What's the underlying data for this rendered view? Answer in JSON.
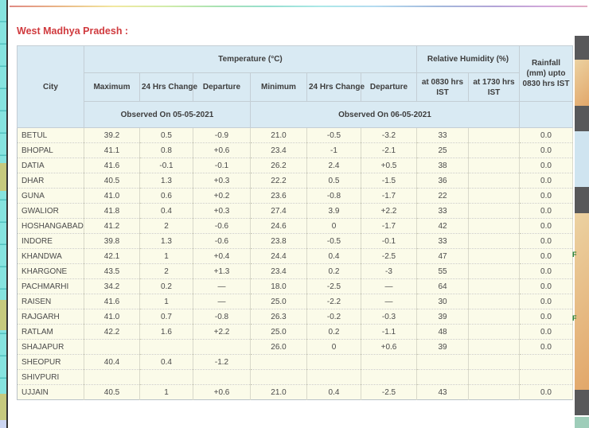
{
  "page": {
    "title": "West Madhya Pradesh :",
    "colors": {
      "title_red": "#d03a3e",
      "observed_red": "#d24a4a",
      "header_bg": "#d9eaf3",
      "row_bg": "#fbfbe9",
      "left_strip_cyan": "#86e3df",
      "left_strip_olive": "#c6c97e",
      "left_strip_lavender": "#ccd6f2",
      "sidebar_gray": "#58585a",
      "sidebar_map_orange": "#e2a76a",
      "sidebar_map_blue": "#cfe4f0",
      "sidebar_link_green": "#1d7d2c"
    }
  },
  "table": {
    "col_city": "City",
    "group_temperature": "Temperature (°C)",
    "group_humidity": "Relative Humidity (%)",
    "col_rainfall": "Rainfall (mm) upto 0830 hrs IST",
    "sub_headers": [
      "Maximum",
      "24 Hrs Change",
      "Departure",
      "Minimum",
      "24 Hrs Change",
      "Departure",
      "at 0830 hrs IST",
      "at 1730 hrs IST"
    ],
    "observed_left": "Observed On 05-05-2021",
    "observed_right": "Observed On 06-05-2021",
    "rows": [
      {
        "city": "BETUL",
        "values": [
          "39.2",
          "0.5",
          "-0.9",
          "21.0",
          "-0.5",
          "-3.2",
          "33",
          "",
          "0.0"
        ]
      },
      {
        "city": "BHOPAL",
        "values": [
          "41.1",
          "0.8",
          "+0.6",
          "23.4",
          "-1",
          "-2.1",
          "25",
          "",
          "0.0"
        ]
      },
      {
        "city": "DATIA",
        "values": [
          "41.6",
          "-0.1",
          "-0.1",
          "26.2",
          "2.4",
          "+0.5",
          "38",
          "",
          "0.0"
        ]
      },
      {
        "city": "DHAR",
        "values": [
          "40.5",
          "1.3",
          "+0.3",
          "22.2",
          "0.5",
          "-1.5",
          "36",
          "",
          "0.0"
        ]
      },
      {
        "city": "GUNA",
        "values": [
          "41.0",
          "0.6",
          "+0.2",
          "23.6",
          "-0.8",
          "-1.7",
          "22",
          "",
          "0.0"
        ]
      },
      {
        "city": "GWALIOR",
        "values": [
          "41.8",
          "0.4",
          "+0.3",
          "27.4",
          "3.9",
          "+2.2",
          "33",
          "",
          "0.0"
        ]
      },
      {
        "city": "HOSHANGABAD",
        "values": [
          "41.2",
          "2",
          "-0.6",
          "24.6",
          "0",
          "-1.7",
          "42",
          "",
          "0.0"
        ]
      },
      {
        "city": "INDORE",
        "values": [
          "39.8",
          "1.3",
          "-0.6",
          "23.8",
          "-0.5",
          "-0.1",
          "33",
          "",
          "0.0"
        ]
      },
      {
        "city": "KHANDWA",
        "values": [
          "42.1",
          "1",
          "+0.4",
          "24.4",
          "0.4",
          "-2.5",
          "47",
          "",
          "0.0"
        ]
      },
      {
        "city": "KHARGONE",
        "values": [
          "43.5",
          "2",
          "+1.3",
          "23.4",
          "0.2",
          "-3",
          "55",
          "",
          "0.0"
        ]
      },
      {
        "city": "PACHMARHI",
        "values": [
          "34.2",
          "0.2",
          "—",
          "18.0",
          "-2.5",
          "—",
          "64",
          "",
          "0.0"
        ]
      },
      {
        "city": "RAISEN",
        "values": [
          "41.6",
          "1",
          "—",
          "25.0",
          "-2.2",
          "—",
          "30",
          "",
          "0.0"
        ]
      },
      {
        "city": "RAJGARH",
        "values": [
          "41.0",
          "0.7",
          "-0.8",
          "26.3",
          "-0.2",
          "-0.3",
          "39",
          "",
          "0.0"
        ]
      },
      {
        "city": "RATLAM",
        "values": [
          "42.2",
          "1.6",
          "+2.2",
          "25.0",
          "0.2",
          "-1.1",
          "48",
          "",
          "0.0"
        ]
      },
      {
        "city": "SHAJAPUR",
        "values": [
          "",
          "",
          "",
          "26.0",
          "0",
          "+0.6",
          "39",
          "",
          "0.0"
        ]
      },
      {
        "city": "SHEOPUR",
        "values": [
          "40.4",
          "0.4",
          "-1.2",
          "",
          "",
          "",
          "",
          "",
          ""
        ]
      },
      {
        "city": "SHIVPURI",
        "values": [
          "",
          "",
          "",
          "",
          "",
          "",
          "",
          "",
          ""
        ]
      },
      {
        "city": "UJJAIN",
        "values": [
          "40.5",
          "1",
          "+0.6",
          "21.0",
          "0.4",
          "-2.5",
          "43",
          "",
          "0.0"
        ]
      }
    ]
  },
  "sidebar": {
    "link_fragments": [
      "F",
      "F"
    ]
  }
}
